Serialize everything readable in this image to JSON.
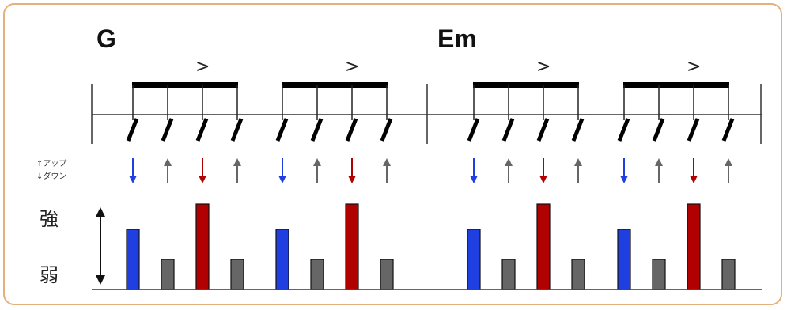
{
  "chords": [
    {
      "name": "G",
      "measure": 0
    },
    {
      "name": "Em",
      "measure": 1
    }
  ],
  "accent_symbol": ">",
  "legend": {
    "up": "↑アップ",
    "down": "↓ダウン"
  },
  "strength_labels": {
    "strong": "強",
    "weak": "弱"
  },
  "colors": {
    "down_accent": "#1f3fe0",
    "down_strong": "#b00000",
    "up": "#666666",
    "border": "#e3b27a"
  },
  "pattern": {
    "strokes_per_group": 4,
    "groups_per_measure": 2,
    "measures": 2,
    "beats": [
      {
        "direction": "down",
        "strength": 0.7,
        "color": "down_accent"
      },
      {
        "direction": "up",
        "strength": 0.35,
        "color": "up"
      },
      {
        "direction": "down",
        "strength": 1.0,
        "color": "down_strong"
      },
      {
        "direction": "up",
        "strength": 0.35,
        "color": "up"
      }
    ]
  }
}
